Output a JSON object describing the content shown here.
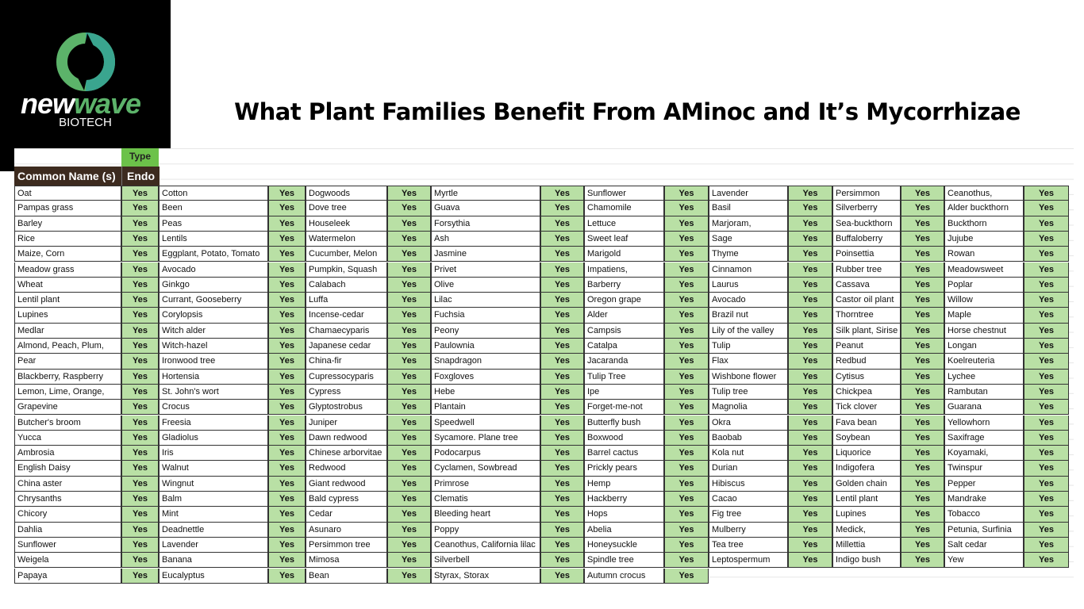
{
  "logo": {
    "word1": "new",
    "word2": "wave",
    "sub": "BIOTECH",
    "colors": {
      "green": "#5cb36a",
      "teal": "#3aa58f"
    }
  },
  "title": "What Plant Families Benefit From AMinoc and It’s Mycorrhizae",
  "table": {
    "type_header": "Type",
    "name_header": "Common Name (s)",
    "endo_header": "Endo",
    "value": "Yes",
    "colors": {
      "header_bg": "#3d2b1f",
      "type_bg": "#6cc24a",
      "yes_bg": "#b9e0a5"
    },
    "columns": [
      [
        "Oat",
        "Pampas grass",
        "Barley",
        "Rice",
        "Maize, Corn",
        "Meadow grass",
        "Wheat",
        "Lentil plant",
        "Lupines",
        "Medlar",
        "Almond, Peach, Plum,",
        "Pear",
        "Blackberry, Raspberry",
        "Lemon, Lime, Orange,",
        "Grapevine",
        "Butcher's broom",
        "Yucca",
        "Ambrosia",
        "English Daisy",
        "China aster",
        "Chrysanths",
        "Chicory",
        "Dahlia",
        "Sunflower",
        "Weigela",
        "Papaya"
      ],
      [
        "Cotton",
        "Been",
        "Peas",
        "Lentils",
        "Eggplant, Potato, Tomato",
        "Avocado",
        "Ginkgo",
        "Currant, Gooseberry",
        "Corylopsis",
        "Witch alder",
        "Witch-hazel",
        "Ironwood tree",
        "Hortensia",
        "St. John's wort",
        "Crocus",
        "Freesia",
        "Gladiolus",
        "Iris",
        "Walnut",
        "Wingnut",
        "Balm",
        "Mint",
        "Deadnettle",
        "Lavender",
        "Banana",
        "Eucalyptus"
      ],
      [
        "Dogwoods",
        "Dove tree",
        "Houseleek",
        "Watermelon",
        "Cucumber, Melon",
        "Pumpkin, Squash",
        "Calabach",
        "Luffa",
        "Incense-cedar",
        "Chamaecyparis",
        "Japanese cedar",
        "China-fir",
        "Cupressocyparis",
        "Cypress",
        "Glyptostrobus",
        "Juniper",
        "Dawn redwood",
        "Chinese arborvitae",
        "Redwood",
        "Giant redwood",
        "Bald cypress",
        "Cedar",
        "Asunaro",
        "Persimmon tree",
        "Mimosa",
        "Bean"
      ],
      [
        "Myrtle",
        "Guava",
        "Forsythia",
        "Ash",
        "Jasmine",
        "Privet",
        "Olive",
        "Lilac",
        "Fuchsia",
        "Peony",
        "Paulownia",
        "Snapdragon",
        "Foxgloves",
        "Hebe",
        "Plantain",
        "Speedwell",
        "Sycamore. Plane tree",
        "Podocarpus",
        "Cyclamen, Sowbread",
        "Primrose",
        "Clematis",
        "Bleeding heart",
        "Poppy",
        "Ceanothus, California lilac",
        "Silverbell",
        "Styrax, Storax"
      ],
      [
        "Sunflower",
        "Chamomile",
        "Lettuce",
        "Sweet leaf",
        "Marigold",
        "Impatiens,",
        "Barberry",
        "Oregon grape",
        "Alder",
        "Campsis",
        "Catalpa",
        "Jacaranda",
        "Tulip Tree",
        "Ipe",
        "Forget-me-not",
        "Butterfly bush",
        "Boxwood",
        "Barrel cactus",
        "Prickly pears",
        "Hemp",
        "Hackberry",
        "Hops",
        "Abelia",
        "Honeysuckle",
        "Spindle tree",
        "Autumn crocus"
      ],
      [
        "Lavender",
        "Basil",
        "Marjoram,",
        "Sage",
        "Thyme",
        "Cinnamon",
        "Laurus",
        "Avocado",
        "Brazil nut",
        "Lily of the valley",
        "Tulip",
        "Flax",
        "Wishbone flower",
        "Tulip tree",
        "Magnolia",
        "Okra",
        "Baobab",
        "Kola nut",
        "Durian",
        "Hibiscus",
        "Cacao",
        "Fig tree",
        "Mulberry",
        "Tea tree",
        "Leptospermum"
      ],
      [
        "Persimmon",
        "Silverberry",
        "Sea-buckthorn",
        "Buffaloberry",
        "Poinsettia",
        "Rubber tree",
        "Cassava",
        "Castor oil plant",
        "Thorntree",
        "Silk plant, Sirise",
        "Peanut",
        "Redbud",
        "Cytisus",
        "Chickpea",
        "Tick clover",
        "Fava bean",
        "Soybean",
        "Liquorice",
        "Indigofera",
        "Golden chain",
        "Lentil plant",
        "Lupines",
        "Medick,",
        "Millettia",
        "Indigo bush"
      ],
      [
        "Ceanothus,",
        "Alder buckthorn",
        "Buckthorn",
        "Jujube",
        "Rowan",
        "Meadowsweet",
        "Poplar",
        "Willow",
        "Maple",
        "Horse chestnut",
        "Longan",
        "Koelreuteria",
        "Lychee",
        "Rambutan",
        "Guarana",
        "Yellowhorn",
        "Saxifrage",
        "Koyamaki,",
        "Twinspur",
        "Pepper",
        "Mandrake",
        "Tobacco",
        "Petunia, Surfinia",
        "Salt cedar",
        "Yew"
      ]
    ]
  }
}
